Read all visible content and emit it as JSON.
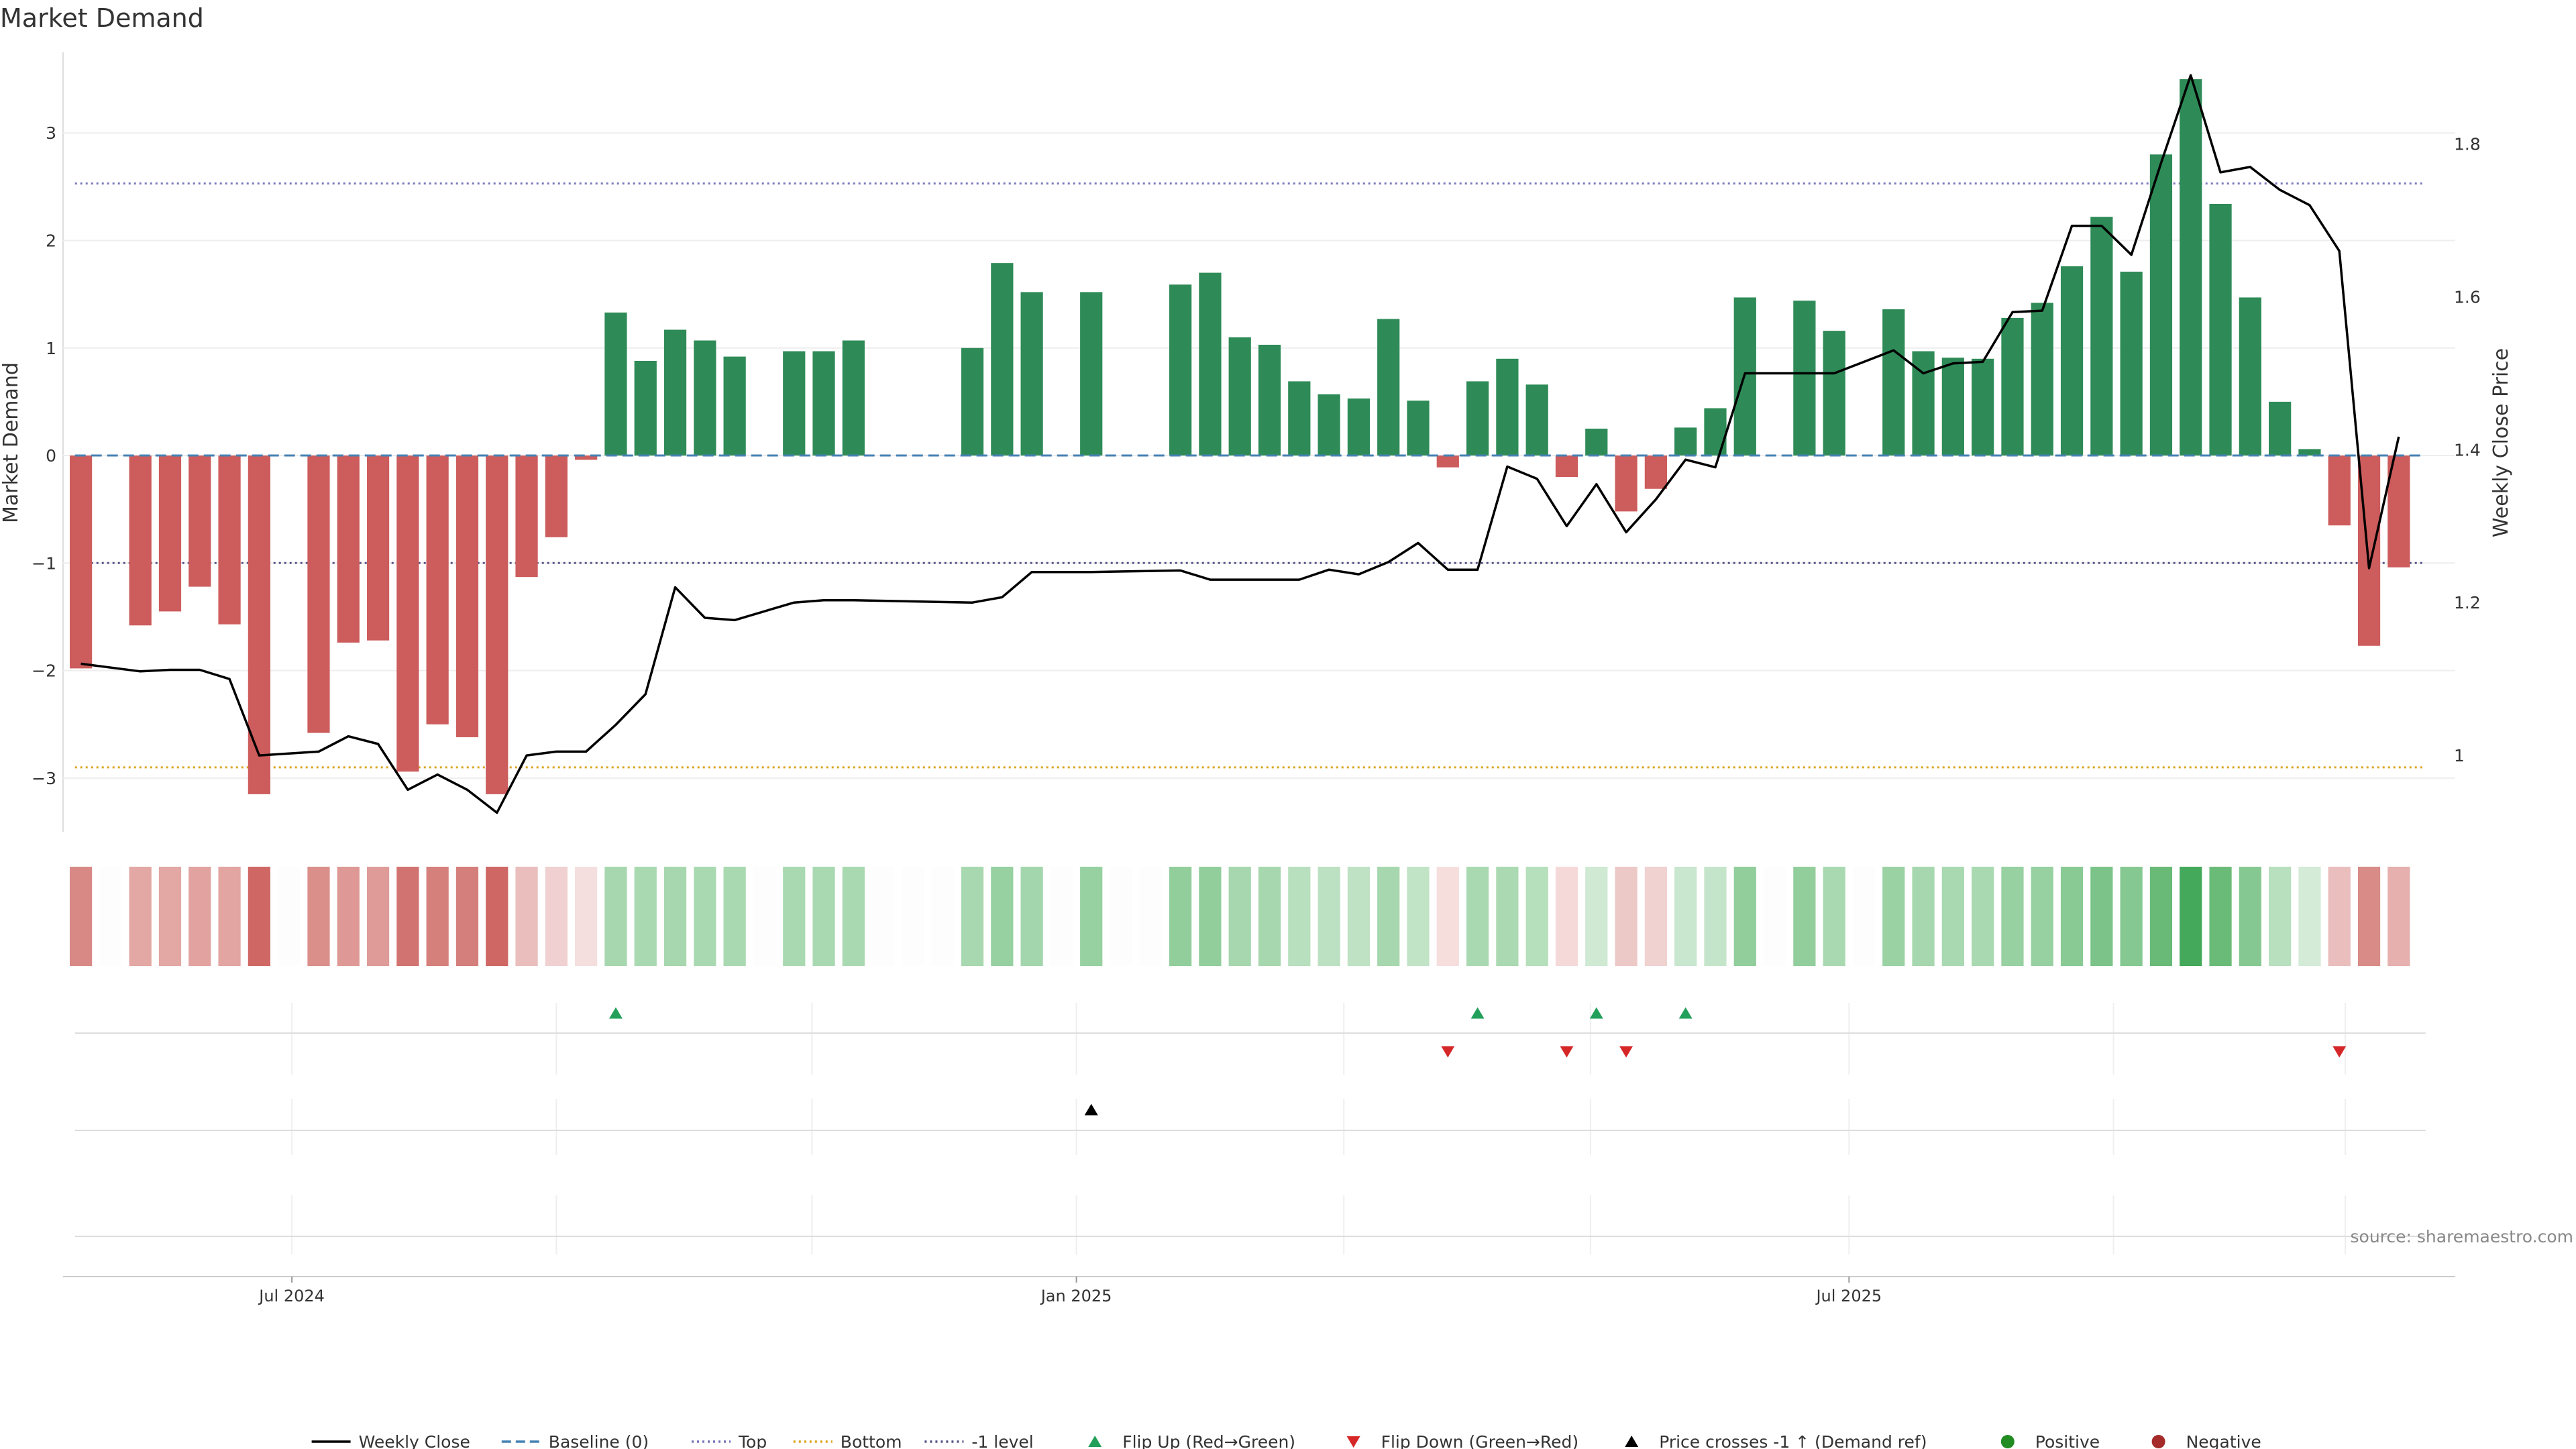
{
  "chart_data": {
    "type": "bar",
    "title": "Market Demand",
    "ylabel_left": "Market Demand",
    "ylabel_right": "Weekly Close Price",
    "ylim_left": [
      -3.5,
      3.75
    ],
    "ylim_right": [
      0.9,
      1.92
    ],
    "yticks_left": [
      {
        "value": 3,
        "label": "3"
      },
      {
        "value": 2,
        "label": "2"
      },
      {
        "value": 1,
        "label": "1"
      },
      {
        "value": 0,
        "label": "0"
      },
      {
        "value": -1,
        "label": "−1"
      },
      {
        "value": -2,
        "label": "−2"
      },
      {
        "value": -3,
        "label": "−3"
      }
    ],
    "yticks_right": [
      {
        "value": 1.8,
        "label": "1.8"
      },
      {
        "value": 1.6,
        "label": "1.6"
      },
      {
        "value": 1.4,
        "label": "1.4"
      },
      {
        "value": 1.2,
        "label": "1.2"
      },
      {
        "value": 1.0,
        "label": "1"
      }
    ],
    "x_range_weeks": [
      -0.6,
      79.9
    ],
    "xticks": [
      {
        "week": 7.1,
        "label": "Jul 2024"
      },
      {
        "week": 33.5,
        "label": "Jan 2025"
      },
      {
        "week": 59.5,
        "label": "Jul 2025"
      }
    ],
    "minor_gridlines_weeks": [
      16.0,
      24.6,
      42.5,
      50.8,
      68.4,
      76.2
    ],
    "reference_lines": {
      "top": 2.53,
      "bottom": -2.9,
      "minus_one": -1.0,
      "baseline": 0
    },
    "colors": {
      "positive": "#2e8b57",
      "negative": "#cd5c5c",
      "price": "#000000",
      "baseline": "#4682b4",
      "top": "#7777bb",
      "bottom": "#daa520",
      "minus_one": "#555588",
      "flip_up": "#22a05a",
      "flip_down": "#d62728",
      "crosses": "#000000",
      "legend_positive": "#228b22",
      "legend_negative": "#a52a2a"
    },
    "series": [
      {
        "name": "Market Demand",
        "values": [
          -1.98,
          null,
          -1.58,
          -1.45,
          -1.22,
          -1.57,
          -3.15,
          null,
          -2.58,
          -1.74,
          -1.72,
          -2.94,
          -2.5,
          -2.62,
          -3.15,
          -1.13,
          -0.76,
          -0.04,
          1.33,
          0.88,
          1.17,
          1.07,
          0.92,
          null,
          0.97,
          0.97,
          1.07,
          null,
          null,
          null,
          1.0,
          1.79,
          1.52,
          null,
          1.52,
          null,
          null,
          1.59,
          1.7,
          1.1,
          1.03,
          0.69,
          0.57,
          0.53,
          1.27,
          0.51,
          -0.11,
          0.69,
          0.9,
          0.66,
          -0.2,
          0.25,
          -0.52,
          -0.31,
          0.26,
          0.44,
          1.47,
          null,
          1.44,
          1.16,
          null,
          1.36,
          0.97,
          0.91,
          0.9,
          1.28,
          1.42,
          1.76,
          2.22,
          1.71,
          2.8,
          3.5,
          2.34,
          1.47,
          0.5,
          0.06,
          -0.65,
          -1.77,
          -1.04
        ]
      },
      {
        "name": "Weekly Close",
        "values": [
          1.12,
          null,
          1.11,
          1.112,
          1.112,
          1.1,
          1.0,
          null,
          1.005,
          1.025,
          1.015,
          0.955,
          0.975,
          0.955,
          0.925,
          1.0,
          1.005,
          1.005,
          1.04,
          1.08,
          1.22,
          1.18,
          1.177,
          null,
          1.2,
          1.203,
          1.203,
          null,
          null,
          null,
          1.2,
          1.207,
          1.24,
          null,
          1.24,
          null,
          null,
          1.242,
          1.23,
          1.23,
          1.23,
          1.23,
          1.243,
          1.237,
          1.253,
          1.278,
          1.243,
          1.243,
          1.378,
          1.362,
          1.3,
          1.355,
          1.292,
          1.335,
          1.387,
          1.377,
          1.5,
          null,
          1.5,
          1.5,
          null,
          1.53,
          1.5,
          1.513,
          1.515,
          1.58,
          1.582,
          1.693,
          1.693,
          1.655,
          1.775,
          1.89,
          1.763,
          1.77,
          1.74,
          1.72,
          1.66,
          1.245,
          1.417
        ]
      }
    ],
    "heat_strip_colors": [
      "#d88985",
      "#fdfdfd",
      "#e3a7a4",
      "#e3a7a4",
      "#e2a3a0",
      "#e2a5a2",
      "#cf6864",
      "#fdfdfd",
      "#da8f8b",
      "#de9996",
      "#de9b98",
      "#d17370",
      "#d6807c",
      "#d57f7c",
      "#cf6864",
      "#e9bebd",
      "#f0d0d0",
      "#f4dede",
      "#a6d7ae",
      "#a9d9b1",
      "#a6d7ae",
      "#a9d9b1",
      "#a9d9b1",
      "#fdfdfd",
      "#a9d9b1",
      "#a9d9b1",
      "#a9d9b1",
      "#fdfdfd",
      "#fdfdfd",
      "#fdfdfd",
      "#a7d8af",
      "#97d0a1",
      "#a3d6ac",
      "#fdfdfd",
      "#97d0a1",
      "#fdfdfd",
      "#fdfdfd",
      "#92ce9c",
      "#92ce9c",
      "#a6d7ae",
      "#a6d7ae",
      "#b8dfbe",
      "#bce1c2",
      "#bfe2c4",
      "#a6d7ae",
      "#c1e3c6",
      "#f6dedd",
      "#a9d9b1",
      "#aad9b2",
      "#b6dfbc",
      "#f5d9d8",
      "#cfe9d3",
      "#ecc8c7",
      "#f0d2d1",
      "#c9e6ce",
      "#c5e5ca",
      "#92ce9c",
      "#fdfdfd",
      "#92ce9c",
      "#a9d9b1",
      "#fdfdfd",
      "#9bd2a4",
      "#a6d7ae",
      "#a9d9b1",
      "#a9d9b1",
      "#97d0a1",
      "#97d0a1",
      "#89ca94",
      "#7bc388",
      "#86c891",
      "#69ba77",
      "#44a95a",
      "#6aba78",
      "#86c891",
      "#b8dfbe",
      "#d3ebd7",
      "#e9bebd",
      "#d88b87",
      "#e5b0ae"
    ],
    "flip_up_weeks": [
      18,
      47,
      51,
      54
    ],
    "flip_down_weeks": [
      46,
      50,
      52,
      76
    ],
    "crosses_weeks": [
      34
    ],
    "source_text": "source: sharemaestro.com",
    "legend": [
      {
        "label": "Weekly Close",
        "kind": "solid"
      },
      {
        "label": "Baseline (0)",
        "kind": "dashed"
      },
      {
        "label": "Top",
        "kind": "dotted"
      },
      {
        "label": "Bottom",
        "kind": "dotted-orange"
      },
      {
        "label": "-1 level",
        "kind": "dotted-dark"
      },
      {
        "label": "Flip Up (Red→Green)",
        "kind": "tri-up-green"
      },
      {
        "label": "Flip Down (Green→Red)",
        "kind": "tri-down-red"
      },
      {
        "label": "Price crosses -1 ↑ (Demand ref)",
        "kind": "tri-up-black"
      },
      {
        "label": "Positive",
        "kind": "dot-green"
      },
      {
        "label": "Negative",
        "kind": "dot-red"
      }
    ]
  }
}
